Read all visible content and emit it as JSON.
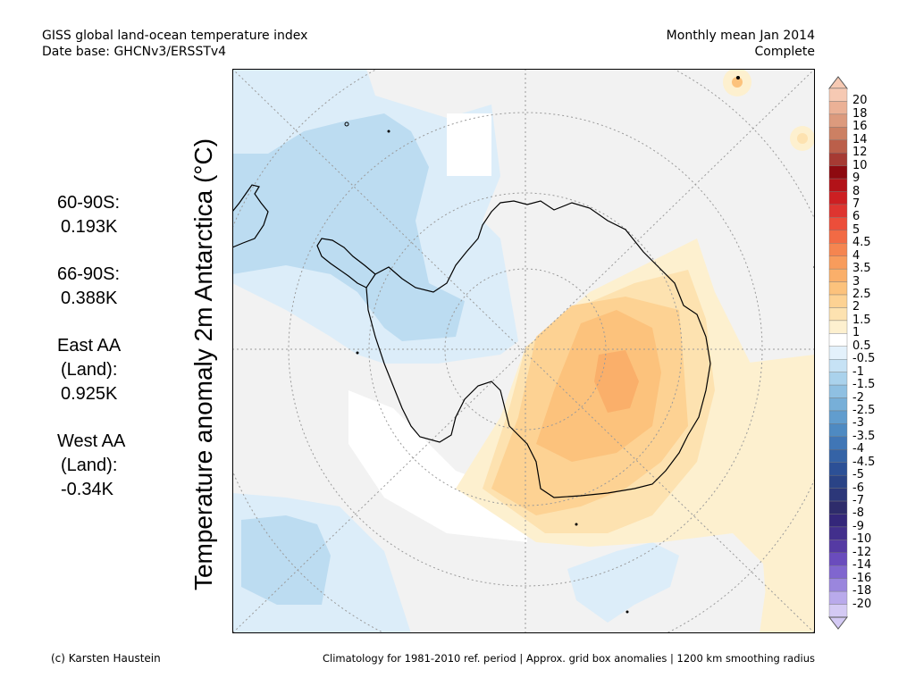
{
  "header": {
    "title_line1": "GISS global land-ocean temperature index",
    "title_line2": "Date base: GHCNv3/ERSSTv4",
    "period_line1": "Monthly mean Jan 2014",
    "period_line2": "Complete"
  },
  "map": {
    "y_axis_label": "Temperature anomaly 2m Antarctica (°C)"
  },
  "stats": [
    {
      "lines": [
        "60-90S:",
        "0.193K"
      ]
    },
    {
      "lines": [
        "66-90S:",
        "0.388K"
      ]
    },
    {
      "lines": [
        "East AA",
        "(Land):",
        "0.925K"
      ]
    },
    {
      "lines": [
        "West AA",
        "(Land):",
        "-0.34K"
      ]
    }
  ],
  "legend": {
    "labels": [
      "20",
      "18",
      "16",
      "14",
      "12",
      "10",
      "9",
      "8",
      "7",
      "6",
      "5",
      "4.5",
      "4",
      "3.5",
      "3",
      "2.5",
      "2",
      "1.5",
      "1",
      "0.5",
      "-0.5",
      "-1",
      "-1.5",
      "-2",
      "-2.5",
      "-3",
      "-3.5",
      "-4",
      "-4.5",
      "-5",
      "-6",
      "-7",
      "-8",
      "-9",
      "-10",
      "-12",
      "-14",
      "-16",
      "-18",
      "-20"
    ],
    "colors": [
      "#f6c9b3",
      "#ebb196",
      "#dc9a7d",
      "#cc8063",
      "#bb5f4a",
      "#a63a33",
      "#8e0a10",
      "#b21218",
      "#cd1f22",
      "#de3530",
      "#ec4e3a",
      "#f26a44",
      "#f58550",
      "#f89c5c",
      "#faaf6a",
      "#fcc27c",
      "#fdd293",
      "#fde2b0",
      "#fdf0cf",
      "#ffffff",
      "#e3f1fb",
      "#c6e2f5",
      "#aad2ec",
      "#8fc0e2",
      "#77afd8",
      "#619dce",
      "#4e8ac2",
      "#4076b6",
      "#3563a6",
      "#2c5096",
      "#2a4386",
      "#2c3779",
      "#2e2c6b",
      "#34277a",
      "#422f8c",
      "#553aa3",
      "#6a4cbd",
      "#8066cf",
      "#9a86dd",
      "#b9aaeb",
      "#d4caf4"
    ]
  },
  "footer": {
    "left": "(c) Karsten Haustein",
    "right": "Climatology for 1981-2010 ref. period | Approx. grid box anomalies | 1200 km smoothing radius"
  }
}
